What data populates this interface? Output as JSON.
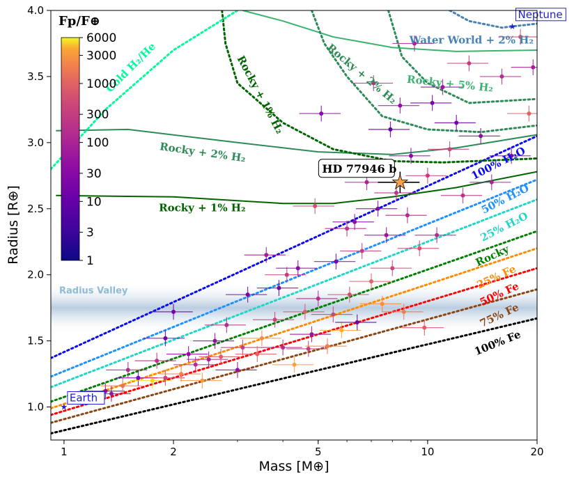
{
  "chart_data": {
    "type": "scatter",
    "title": "",
    "xlabel": "Mass [M⊕]",
    "ylabel": "Radius [R⊕]",
    "xscale": "log",
    "xlim": [
      0.92,
      20
    ],
    "ylim": [
      0.75,
      4.0
    ],
    "x_ticks": [
      {
        "value": 1,
        "label": "1"
      },
      {
        "value": 2,
        "label": "2"
      },
      {
        "value": 5,
        "label": "5"
      },
      {
        "value": 10,
        "label": "10"
      },
      {
        "value": 20,
        "label": "20"
      }
    ],
    "y_ticks": [
      {
        "value": 1.0,
        "label": "1.0"
      },
      {
        "value": 1.5,
        "label": "1.5"
      },
      {
        "value": 2.0,
        "label": "2.0"
      },
      {
        "value": 2.5,
        "label": "2.5"
      },
      {
        "value": 3.0,
        "label": "3.0"
      },
      {
        "value": 3.5,
        "label": "3.5"
      },
      {
        "value": 4.0,
        "label": "4.0"
      }
    ],
    "radius_valley": {
      "label": "Radius Valley",
      "center": 1.75,
      "half_width": 0.2
    },
    "colorbar": {
      "title": "Fp/F⊕",
      "scale": "log",
      "min": 1,
      "max": 6000,
      "ticks": [
        {
          "value": 1,
          "label": "1"
        },
        {
          "value": 3,
          "label": "3"
        },
        {
          "value": 10,
          "label": "10"
        },
        {
          "value": 30,
          "label": "30"
        },
        {
          "value": 100,
          "label": "100"
        },
        {
          "value": 300,
          "label": "300"
        },
        {
          "value": 1000,
          "label": "1000"
        },
        {
          "value": 3000,
          "label": "3000"
        },
        {
          "value": 6000,
          "label": "6000"
        }
      ]
    },
    "composition_curves": [
      {
        "name": "100% H2O",
        "color": "#0a0af0",
        "style": "dotted",
        "x": [
          0.92,
          20
        ],
        "y": [
          1.37,
          3.05
        ]
      },
      {
        "name": "50% H2O",
        "color": "#1e90ff",
        "style": "dotted",
        "x": [
          0.92,
          20
        ],
        "y": [
          1.23,
          2.72
        ]
      },
      {
        "name": "25% H2O",
        "color": "#1fd6c8",
        "style": "dotted",
        "x": [
          0.92,
          20
        ],
        "y": [
          1.15,
          2.57
        ]
      },
      {
        "name": "Rocky",
        "color": "#008000",
        "style": "dotted",
        "x": [
          0.92,
          20
        ],
        "y": [
          1.04,
          2.33
        ]
      },
      {
        "name": "25% Fe",
        "color": "#ff8c00",
        "style": "dotted",
        "x": [
          0.92,
          20
        ],
        "y": [
          0.99,
          2.2
        ]
      },
      {
        "name": "50% Fe",
        "color": "#ff0000",
        "style": "dotted",
        "x": [
          0.92,
          20
        ],
        "y": [
          0.94,
          2.05
        ]
      },
      {
        "name": "75% Fe",
        "color": "#8b4513",
        "style": "dotted",
        "x": [
          0.92,
          20
        ],
        "y": [
          0.88,
          1.89
        ]
      },
      {
        "name": "100% Fe",
        "color": "#000000",
        "style": "dotted",
        "x": [
          0.92,
          20
        ],
        "y": [
          0.8,
          1.67
        ]
      },
      {
        "name": "Rocky + 1% H2",
        "color": "#006400",
        "style": "solid",
        "x": [
          0.95,
          2,
          4,
          5.5,
          8,
          12,
          20
        ],
        "y": [
          2.6,
          2.59,
          2.54,
          2.54,
          2.59,
          2.66,
          2.78
        ]
      },
      {
        "name": "Rocky + 2% H2",
        "color": "#2e8b57",
        "style": "solid",
        "x": [
          0.95,
          1.5,
          3,
          5,
          8,
          12,
          20
        ],
        "y": [
          3.09,
          3.1,
          3.0,
          2.93,
          2.91,
          2.96,
          3.06
        ]
      },
      {
        "name": "Rocky + 5% H2",
        "color": "#3cb371",
        "style": "solid",
        "x": [
          3.1,
          4,
          5.5,
          8,
          12,
          20
        ],
        "y": [
          4.0,
          3.92,
          3.8,
          3.72,
          3.69,
          3.7
        ]
      },
      {
        "name": "Rocky + 1% H2 (cold)",
        "color": "#006400",
        "style": "dotted",
        "x": [
          2.72,
          2.78,
          3.0,
          4.0,
          5.5,
          8,
          11,
          20
        ],
        "y": [
          4.0,
          3.75,
          3.45,
          3.15,
          2.95,
          2.86,
          2.85,
          2.88
        ]
      },
      {
        "name": "Rocky + 2% H2 (cold)",
        "color": "#2e8b57",
        "style": "dotted",
        "x": [
          4.8,
          5.2,
          6,
          7.5,
          10,
          14,
          20
        ],
        "y": [
          4.0,
          3.75,
          3.5,
          3.2,
          3.1,
          3.08,
          3.13
        ]
      },
      {
        "name": "Rocky + 5% H2 (cold)",
        "color": "#2e8b57",
        "style": "dotted",
        "x": [
          7.8,
          8.5,
          10,
          13,
          20
        ],
        "y": [
          4.0,
          3.65,
          3.45,
          3.3,
          3.33
        ]
      },
      {
        "name": "Water World + 2% H2",
        "color": "#4682b4",
        "style": "dotted",
        "x": [
          11.5,
          13,
          16,
          20
        ],
        "y": [
          4.0,
          3.92,
          3.87,
          3.9
        ]
      },
      {
        "name": "Cold H2/He",
        "color": "#00fa9a",
        "style": "dotted",
        "x": [
          0.92,
          1.3,
          2,
          3
        ],
        "y": [
          2.8,
          3.25,
          3.7,
          4.0
        ]
      }
    ],
    "curve_labels": [
      {
        "text": "100% H₂O",
        "color": "#0a0af0",
        "x": 15.8,
        "y": 2.82,
        "angle": -27
      },
      {
        "text": "50% H₂O",
        "color": "#1e90ff",
        "x": 16.5,
        "y": 2.55,
        "angle": -27
      },
      {
        "text": "25% H₂O",
        "color": "#1fd6c8",
        "x": 16.4,
        "y": 2.34,
        "angle": -27
      },
      {
        "text": "Rocky",
        "color": "#008000",
        "x": 15.2,
        "y": 2.12,
        "angle": -25
      },
      {
        "text": "25% Fe",
        "color": "#ff8c00",
        "x": 15.6,
        "y": 1.96,
        "angle": -25
      },
      {
        "text": "50% Fe",
        "color": "#ff0000",
        "x": 15.9,
        "y": 1.83,
        "angle": -25
      },
      {
        "text": "75% Fe",
        "color": "#8b4513",
        "x": 15.9,
        "y": 1.67,
        "angle": -25
      },
      {
        "text": "100% Fe",
        "color": "#000000",
        "x": 15.7,
        "y": 1.46,
        "angle": -22
      },
      {
        "text": "Rocky + 1% H₂",
        "color": "#006400",
        "x": 2.4,
        "y": 2.48,
        "angle": 0
      },
      {
        "text": "Rocky + 2% H₂",
        "color": "#2e8b57",
        "x": 2.4,
        "y": 2.9,
        "angle": 8
      },
      {
        "text": "Rocky + 5% H₂",
        "color": "#3cb371",
        "x": 11.5,
        "y": 3.42,
        "angle": 6
      },
      {
        "text": "Rocky + 1% H₂",
        "color": "#006400",
        "x": 3.4,
        "y": 3.35,
        "angle": 62
      },
      {
        "text": "Rocky + 2% H₂",
        "color": "#2e8b57",
        "x": 6.5,
        "y": 3.5,
        "angle": 40
      },
      {
        "text": "Water World + 2% H₂",
        "color": "#4682b4",
        "x": 13.2,
        "y": 3.75,
        "angle": 0
      },
      {
        "text": "Cold H₂/He",
        "color": "#00fa9a",
        "x": 1.55,
        "y": 3.55,
        "angle": -45
      }
    ],
    "points": [
      {
        "m": 1.3,
        "r": 1.12,
        "f": 30
      },
      {
        "m": 1.35,
        "r": 1.1,
        "f": 60
      },
      {
        "m": 1.45,
        "r": 1.16,
        "f": 1500
      },
      {
        "m": 1.5,
        "r": 1.28,
        "f": 150
      },
      {
        "m": 1.6,
        "r": 1.22,
        "f": 20
      },
      {
        "m": 1.75,
        "r": 1.2,
        "f": 5000
      },
      {
        "m": 1.8,
        "r": 1.35,
        "f": 200
      },
      {
        "m": 1.9,
        "r": 1.52,
        "f": 15
      },
      {
        "m": 1.9,
        "r": 1.22,
        "f": 400
      },
      {
        "m": 2.0,
        "r": 1.72,
        "f": 15
      },
      {
        "m": 2.1,
        "r": 1.25,
        "f": 2000
      },
      {
        "m": 2.2,
        "r": 1.4,
        "f": 40
      },
      {
        "m": 2.3,
        "r": 1.32,
        "f": 150
      },
      {
        "m": 2.4,
        "r": 1.2,
        "f": 3000
      },
      {
        "m": 2.5,
        "r": 1.36,
        "f": 90
      },
      {
        "m": 2.6,
        "r": 1.5,
        "f": 40
      },
      {
        "m": 2.7,
        "r": 1.38,
        "f": 800
      },
      {
        "m": 2.8,
        "r": 1.62,
        "f": 150
      },
      {
        "m": 3.0,
        "r": 1.28,
        "f": 40
      },
      {
        "m": 3.1,
        "r": 1.45,
        "f": 300
      },
      {
        "m": 3.2,
        "r": 1.85,
        "f": 20
      },
      {
        "m": 3.4,
        "r": 1.4,
        "f": 1000
      },
      {
        "m": 3.5,
        "r": 1.52,
        "f": 2500
      },
      {
        "m": 3.6,
        "r": 2.15,
        "f": 80
      },
      {
        "m": 3.8,
        "r": 1.66,
        "f": 400
      },
      {
        "m": 3.9,
        "r": 1.9,
        "f": 15
      },
      {
        "m": 4.0,
        "r": 1.45,
        "f": 150
      },
      {
        "m": 4.1,
        "r": 2.0,
        "f": 300
      },
      {
        "m": 4.3,
        "r": 1.32,
        "f": 3500
      },
      {
        "m": 4.4,
        "r": 2.05,
        "f": 30
      },
      {
        "m": 4.6,
        "r": 1.72,
        "f": 900
      },
      {
        "m": 4.7,
        "r": 1.44,
        "f": 300
      },
      {
        "m": 4.8,
        "r": 1.55,
        "f": 60
      },
      {
        "m": 4.9,
        "r": 2.52,
        "f": 600
      },
      {
        "m": 5.0,
        "r": 1.82,
        "f": 150
      },
      {
        "m": 5.1,
        "r": 3.22,
        "f": 30
      },
      {
        "m": 5.3,
        "r": 1.46,
        "f": 1800
      },
      {
        "m": 5.5,
        "r": 1.7,
        "f": 400
      },
      {
        "m": 5.6,
        "r": 2.1,
        "f": 20
      },
      {
        "m": 5.8,
        "r": 1.58,
        "f": 4000
      },
      {
        "m": 6.0,
        "r": 2.35,
        "f": 200
      },
      {
        "m": 6.1,
        "r": 1.85,
        "f": 600
      },
      {
        "m": 6.3,
        "r": 2.4,
        "f": 40
      },
      {
        "m": 6.4,
        "r": 1.64,
        "f": 10
      },
      {
        "m": 6.6,
        "r": 2.18,
        "f": 300
      },
      {
        "m": 6.8,
        "r": 2.7,
        "f": 100
      },
      {
        "m": 7.0,
        "r": 1.95,
        "f": 1000
      },
      {
        "m": 7.1,
        "r": 3.45,
        "f": 150
      },
      {
        "m": 7.3,
        "r": 2.5,
        "f": 30
      },
      {
        "m": 7.5,
        "r": 1.78,
        "f": 2500
      },
      {
        "m": 7.7,
        "r": 2.3,
        "f": 60
      },
      {
        "m": 7.9,
        "r": 3.1,
        "f": 10
      },
      {
        "m": 8.0,
        "r": 2.05,
        "f": 400
      },
      {
        "m": 8.2,
        "r": 2.62,
        "f": 200
      },
      {
        "m": 8.4,
        "r": 3.28,
        "f": 40
      },
      {
        "m": 8.6,
        "r": 1.72,
        "f": 1800
      },
      {
        "m": 8.8,
        "r": 2.45,
        "f": 150
      },
      {
        "m": 9.0,
        "r": 2.9,
        "f": 30
      },
      {
        "m": 9.2,
        "r": 3.75,
        "f": 100
      },
      {
        "m": 9.5,
        "r": 2.2,
        "f": 600
      },
      {
        "m": 9.8,
        "r": 1.6,
        "f": 900
      },
      {
        "m": 10.0,
        "r": 2.75,
        "f": 300
      },
      {
        "m": 10.3,
        "r": 3.3,
        "f": 20
      },
      {
        "m": 10.6,
        "r": 2.3,
        "f": 150
      },
      {
        "m": 11.0,
        "r": 3.42,
        "f": 60
      },
      {
        "m": 11.5,
        "r": 2.95,
        "f": 400
      },
      {
        "m": 12.0,
        "r": 3.15,
        "f": 15
      },
      {
        "m": 12.5,
        "r": 2.6,
        "f": 200
      },
      {
        "m": 13.0,
        "r": 3.6,
        "f": 300
      },
      {
        "m": 14.0,
        "r": 3.05,
        "f": 40
      },
      {
        "m": 15.0,
        "r": 2.7,
        "f": 100
      },
      {
        "m": 16.0,
        "r": 3.5,
        "f": 150
      },
      {
        "m": 17.0,
        "r": 2.9,
        "f": 30
      },
      {
        "m": 18.0,
        "r": 3.8,
        "f": 600
      },
      {
        "m": 19.0,
        "r": 3.22,
        "f": 1000
      },
      {
        "m": 19.5,
        "r": 3.57,
        "f": 80
      }
    ],
    "highlight_planet": {
      "name": "HD 77946 b",
      "m": 8.4,
      "r": 2.7,
      "m_err": 1.1,
      "r_err": 0.08,
      "color": "#f7a04a"
    },
    "reference_planets": [
      {
        "name": "Earth",
        "m": 1.0,
        "r": 1.0,
        "color": "#1f1fd0"
      },
      {
        "name": "Neptune",
        "m": 17.1,
        "r": 3.88,
        "color": "#1f1fd0"
      }
    ]
  }
}
